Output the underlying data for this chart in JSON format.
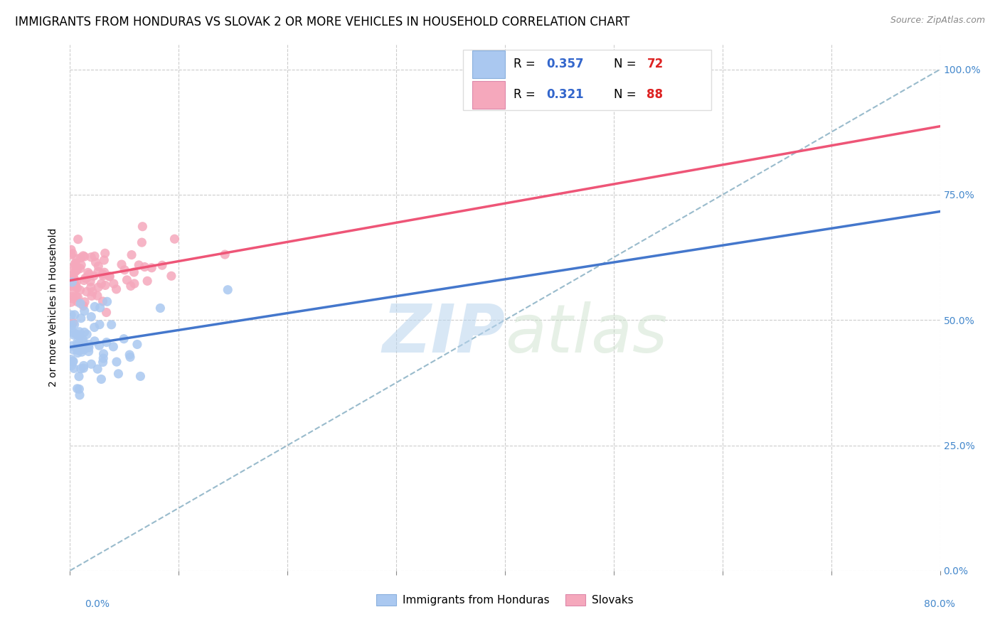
{
  "title": "IMMIGRANTS FROM HONDURAS VS SLOVAK 2 OR MORE VEHICLES IN HOUSEHOLD CORRELATION CHART",
  "source": "Source: ZipAtlas.com",
  "ylabel": "2 or more Vehicles in Household",
  "ytick_labels": [
    "0.0%",
    "25.0%",
    "50.0%",
    "75.0%",
    "100.0%"
  ],
  "ytick_values": [
    0.0,
    0.25,
    0.5,
    0.75,
    1.0
  ],
  "xlim": [
    0.0,
    0.8
  ],
  "ylim": [
    0.0,
    1.05
  ],
  "legend_label1": "Immigrants from Honduras",
  "legend_label2": "Slovaks",
  "R1": 0.357,
  "N1": 72,
  "R2": 0.321,
  "N2": 88,
  "color1": "#aac8f0",
  "color2": "#f5a8bc",
  "line1_color": "#4477cc",
  "line2_color": "#ee5577",
  "dashed_line_color": "#99bbcc",
  "title_fontsize": 12,
  "axis_label_fontsize": 10,
  "tick_fontsize": 10,
  "legend_fontsize": 12
}
